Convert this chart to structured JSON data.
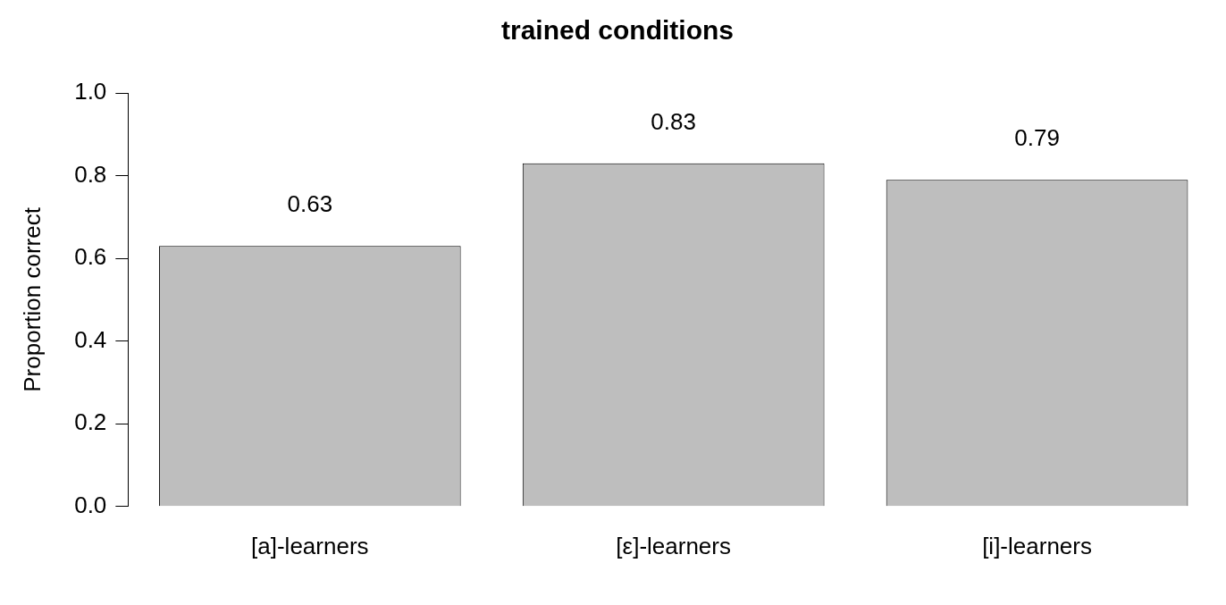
{
  "chart_data": {
    "type": "bar",
    "title": "trained conditions",
    "ylabel": "Proportion correct",
    "categories": [
      "[a]-learners",
      "[ε]-learners",
      "[i]-learners"
    ],
    "values": [
      0.63,
      0.83,
      0.79
    ],
    "color": "#bebebe",
    "ylim": [
      0,
      1
    ],
    "yticks": [
      {
        "value": 0,
        "label": "0.0"
      },
      0.2,
      0.4,
      0.6,
      0.8,
      {
        "value": 1,
        "label": "1.0"
      }
    ],
    "grid": false,
    "legend": false,
    "data_labels": true
  }
}
